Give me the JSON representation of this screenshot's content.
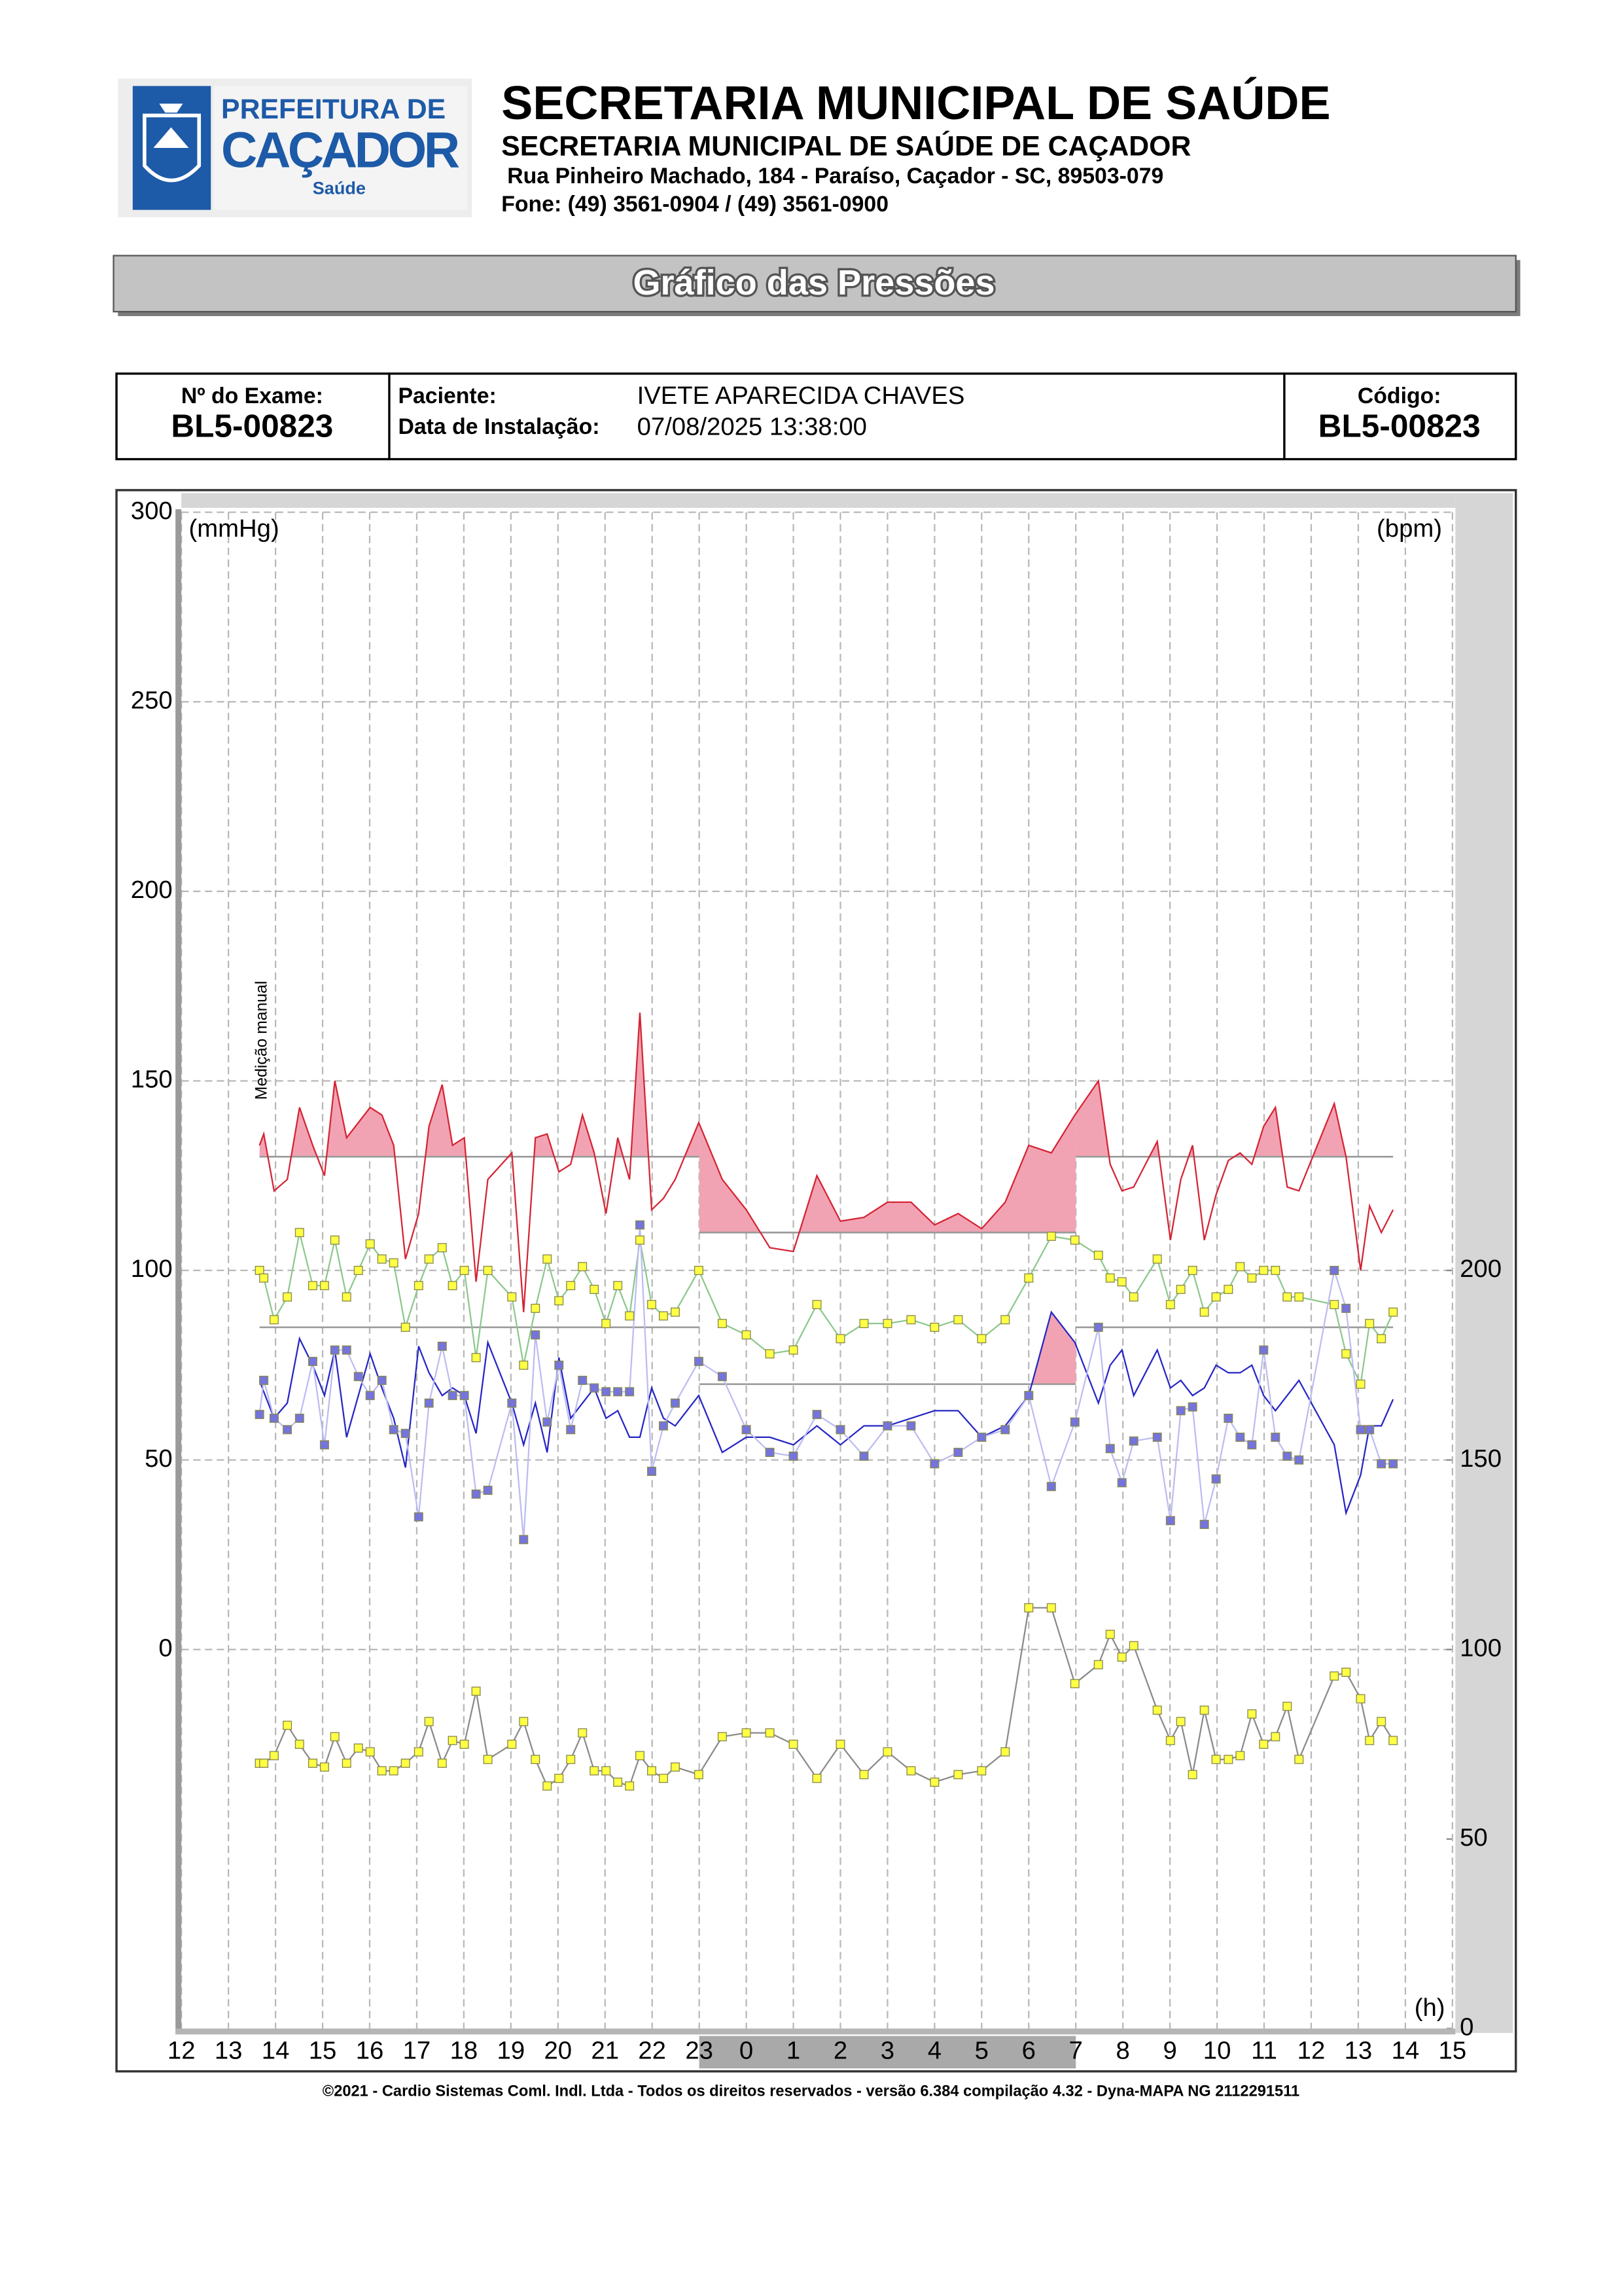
{
  "header": {
    "logo": {
      "line1": "PREFEITURA DE",
      "line2": "CAÇADOR",
      "line3": "Saúde"
    },
    "title": "SECRETARIA MUNICIPAL DE SAÚDE",
    "subtitle": "SECRETARIA MUNICIPAL DE SAÚDE DE CAÇADOR",
    "address": "Rua Pinheiro Machado, 184 - Paraíso, Caçador - SC, 89503-079",
    "phone": "Fone: (49) 3561-0904  / (49) 3561-0900"
  },
  "report_title": "Gráfico das Pressões",
  "info": {
    "exam_label": "Nº do Exame:",
    "exam": "BL5-00823",
    "patient_label": "Paciente:",
    "patient": "IVETE APARECIDA CHAVES",
    "install_label": "Data de Instalação:",
    "install": "07/08/2025 13:38:00",
    "code_label": "Código:",
    "code": "BL5-00823"
  },
  "chart_data": {
    "type": "line",
    "y_label": "(mmHg)",
    "y2_label": "(bpm)",
    "x_label": "(h)",
    "annotation": "Medição manual",
    "xlim": [
      12,
      39
    ],
    "xticks": [
      12,
      13,
      14,
      15,
      16,
      17,
      18,
      19,
      20,
      21,
      22,
      23,
      {
        "value": 24,
        "label": "0"
      },
      {
        "value": 25,
        "label": "1"
      },
      {
        "value": 26,
        "label": "2"
      },
      {
        "value": 27,
        "label": "3"
      },
      {
        "value": 28,
        "label": "4"
      },
      {
        "value": 29,
        "label": "5"
      },
      {
        "value": 30,
        "label": "6"
      },
      {
        "value": 31,
        "label": "7"
      },
      {
        "value": 32,
        "label": "8"
      },
      {
        "value": 33,
        "label": "9"
      },
      {
        "value": 34,
        "label": "10"
      },
      {
        "value": 35,
        "label": "11"
      },
      {
        "value": 36,
        "label": "12"
      },
      {
        "value": 37,
        "label": "13"
      },
      {
        "value": 38,
        "label": "14"
      },
      {
        "value": 39,
        "label": "15"
      }
    ],
    "ylim": [
      -100,
      300
    ],
    "yticks": [
      0,
      50,
      100,
      150,
      200,
      250,
      300
    ],
    "y2lim": [
      0,
      400
    ],
    "y2ticks": [
      0,
      50,
      100,
      150,
      200
    ],
    "grid": true,
    "night": [
      23,
      31
    ],
    "x": [
      13.66,
      13.75,
      13.97,
      14.25,
      14.51,
      14.79,
      15.04,
      15.26,
      15.51,
      15.76,
      16.01,
      16.26,
      16.51,
      16.76,
      17.04,
      17.26,
      17.54,
      17.76,
      18.01,
      18.26,
      18.51,
      19.02,
      19.27,
      19.52,
      19.77,
      20.02,
      20.27,
      20.52,
      20.77,
      21.02,
      21.27,
      21.52,
      21.74,
      21.99,
      22.24,
      22.49,
      22.99,
      23.49,
      24.0,
      24.5,
      25.0,
      25.5,
      26.0,
      26.5,
      27.0,
      27.5,
      28.0,
      28.5,
      29.0,
      29.5,
      30.0,
      30.48,
      30.98,
      31.48,
      31.73,
      31.98,
      32.23,
      32.73,
      33.01,
      33.23,
      33.48,
      33.73,
      33.98,
      34.24,
      34.49,
      34.74,
      34.99,
      35.24,
      35.49,
      35.74,
      36.49,
      36.74,
      37.05,
      37.24,
      37.49,
      37.74
    ],
    "limits": [
      {
        "x": [
          13.66,
          23
        ],
        "values": [
          130,
          85
        ]
      },
      {
        "x": [
          23,
          31
        ],
        "values": [
          110,
          70
        ]
      },
      {
        "x": [
          31,
          37.74
        ],
        "values": [
          130,
          85
        ]
      }
    ],
    "series": [
      {
        "color": "#d42434",
        "fill": "#f2a3b3",
        "limit": 0,
        "values": [
          133,
          136,
          121,
          124,
          143,
          133,
          125,
          150,
          135,
          139,
          143,
          141,
          133,
          103,
          115,
          138,
          149,
          133,
          135,
          97,
          124,
          131,
          89,
          135,
          136,
          126,
          128,
          141,
          131,
          115,
          135,
          124,
          168,
          116,
          119,
          124,
          139,
          124,
          116,
          106,
          105,
          125,
          113,
          114,
          118,
          118,
          112,
          115,
          111,
          118,
          133,
          131,
          141,
          150,
          128,
          121,
          122,
          134,
          108,
          124,
          133,
          108,
          120,
          129,
          131,
          128,
          138,
          143,
          122,
          121,
          144,
          130,
          100,
          117,
          110,
          116
        ]
      },
      {
        "color": "#2626c4",
        "fill": "#f2a3b3",
        "limit": 1,
        "values": [
          71,
          68,
          61,
          65,
          82,
          75,
          67,
          79,
          56,
          67,
          78,
          69,
          61,
          48,
          80,
          73,
          67,
          69,
          67,
          57,
          81,
          65,
          54,
          65,
          52,
          77,
          61,
          65,
          69,
          61,
          63,
          56,
          56,
          69,
          61,
          59,
          67,
          52,
          56,
          56,
          54,
          59,
          54,
          59,
          59,
          61,
          63,
          63,
          56,
          59,
          67,
          89,
          81,
          65,
          75,
          79,
          67,
          79,
          69,
          71,
          67,
          69,
          75,
          73,
          73,
          75,
          67,
          63,
          67,
          71,
          54,
          36,
          46,
          59,
          59,
          66
        ]
      },
      {
        "color": "#8cc88c",
        "marker": "#ffff44",
        "values": [
          100,
          98,
          87,
          93,
          110,
          96,
          96,
          108,
          93,
          100,
          107,
          103,
          102,
          85,
          96,
          103,
          106,
          96,
          100,
          77,
          100,
          93,
          75,
          90,
          103,
          92,
          96,
          101,
          95,
          86,
          96,
          88,
          108,
          91,
          88,
          89,
          100,
          86,
          83,
          78,
          79,
          91,
          82,
          86,
          86,
          87,
          85,
          87,
          82,
          87,
          98,
          109,
          108,
          104,
          98,
          97,
          93,
          103,
          91,
          95,
          100,
          89,
          93,
          95,
          101,
          98,
          100,
          100,
          93,
          93,
          91,
          78,
          70,
          86,
          82,
          89
        ]
      },
      {
        "color": "#bcbcf2",
        "marker": "#7474dc",
        "values": [
          62,
          71,
          61,
          58,
          61,
          76,
          54,
          79,
          79,
          72,
          67,
          71,
          58,
          57,
          35,
          65,
          80,
          67,
          67,
          41,
          42,
          65,
          29,
          83,
          60,
          75,
          58,
          71,
          69,
          68,
          68,
          68,
          112,
          47,
          59,
          65,
          76,
          72,
          58,
          52,
          51,
          62,
          58,
          51,
          59,
          59,
          49,
          52,
          56,
          58,
          67,
          43,
          60,
          85,
          53,
          44,
          55,
          56,
          34,
          63,
          64,
          33,
          45,
          61,
          56,
          54,
          79,
          56,
          51,
          50,
          100,
          90,
          58,
          58,
          49,
          49
        ]
      },
      {
        "color": "#8a8a8a",
        "marker": "#ffff44",
        "axis": "y2",
        "values": [
          70,
          70,
          72,
          80,
          75,
          70,
          69,
          77,
          70,
          74,
          73,
          68,
          68,
          70,
          73,
          81,
          70,
          76,
          75,
          89,
          71,
          75,
          81,
          71,
          64,
          66,
          71,
          78,
          68,
          68,
          65,
          64,
          72,
          68,
          66,
          69,
          67,
          77,
          78,
          78,
          75,
          66,
          75,
          67,
          73,
          68,
          65,
          67,
          68,
          73,
          111,
          111,
          91,
          96,
          104,
          98,
          101,
          84,
          76,
          81,
          67,
          84,
          71,
          71,
          72,
          83,
          75,
          77,
          85,
          71,
          93,
          94,
          87,
          76,
          81,
          76
        ]
      }
    ]
  },
  "footer": "©2021 - Cardio Sistemas Coml. Indl. Ltda - Todos os direitos reservados - versão 6.384 compilação 4.32 - Dyna-MAPA NG 2112291511"
}
